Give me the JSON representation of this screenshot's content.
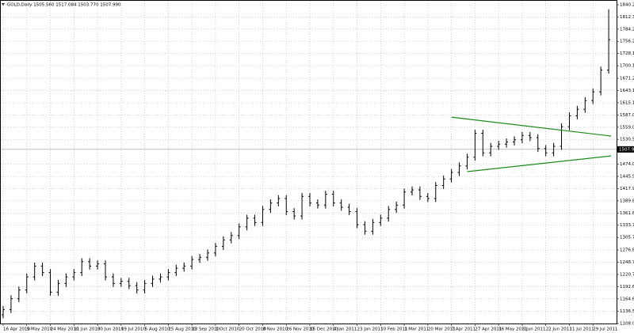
{
  "chart_data": {
    "type": "ohlc",
    "title": "GOLD,Daily  1505.560 1517.084 1503.770 1507.990",
    "categories": [
      "16 Apr 2010",
      null,
      null,
      "5 May 2010",
      null,
      null,
      "24 May 2010",
      null,
      null,
      "11 Jun 2010",
      null,
      null,
      "30 Jun 2010",
      null,
      null,
      "19 Jul 2010",
      null,
      null,
      "5 Aug 2010",
      null,
      null,
      "25 Aug 2010",
      null,
      null,
      "13 Sep 2010",
      null,
      null,
      "1 Oct 2010",
      null,
      null,
      "20 Oct 2010",
      null,
      null,
      "8 Nov 2010",
      null,
      null,
      "26 Nov 2010",
      null,
      null,
      "15 Dec 2010",
      null,
      null,
      "4 Jan 2011",
      null,
      null,
      "23 Jan 2011",
      null,
      null,
      "10 Feb 2011",
      null,
      null,
      "1 Mar 2011",
      null,
      null,
      "20 Mar 2011",
      null,
      null,
      "7 Apr 2011",
      null,
      null,
      "27 Apr 2011",
      null,
      null,
      "16 May 2011",
      null,
      null,
      "3 Jun 2011",
      null,
      null,
      "22 Jun 2011",
      null,
      null,
      "11 Jul 2011",
      null,
      null,
      "29 Jul 2011",
      null,
      null
    ],
    "open": [
      1128,
      1140,
      1165,
      1185,
      1215,
      1240,
      1225,
      1180,
      1200,
      1215,
      1225,
      1250,
      1240,
      1245,
      1215,
      1200,
      1205,
      1195,
      1185,
      1200,
      1210,
      1215,
      1225,
      1235,
      1240,
      1255,
      1260,
      1270,
      1285,
      1300,
      1310,
      1330,
      1350,
      1340,
      1370,
      1385,
      1395,
      1365,
      1355,
      1400,
      1385,
      1380,
      1405,
      1385,
      1375,
      1365,
      1335,
      1320,
      1340,
      1350,
      1370,
      1380,
      1410,
      1415,
      1400,
      1395,
      1425,
      1440,
      1455,
      1470,
      1490,
      1545,
      1500,
      1515,
      1520,
      1525,
      1530,
      1540,
      1535,
      1510,
      1500,
      1515,
      1560,
      1585,
      1600,
      1620,
      1640,
      1690
    ],
    "high": [
      1148,
      1173,
      1193,
      1223,
      1248,
      1248,
      1233,
      1208,
      1223,
      1233,
      1258,
      1258,
      1253,
      1253,
      1223,
      1213,
      1213,
      1203,
      1208,
      1218,
      1223,
      1233,
      1243,
      1248,
      1263,
      1268,
      1278,
      1293,
      1308,
      1318,
      1338,
      1358,
      1358,
      1378,
      1393,
      1403,
      1403,
      1373,
      1408,
      1408,
      1393,
      1413,
      1413,
      1393,
      1383,
      1373,
      1343,
      1348,
      1358,
      1378,
      1388,
      1418,
      1423,
      1423,
      1408,
      1433,
      1448,
      1463,
      1478,
      1498,
      1553,
      1553,
      1523,
      1528,
      1533,
      1538,
      1548,
      1548,
      1543,
      1518,
      1523,
      1568,
      1593,
      1608,
      1628,
      1648,
      1698,
      1830
    ],
    "low": [
      1120,
      1132,
      1157,
      1177,
      1207,
      1217,
      1172,
      1172,
      1192,
      1207,
      1217,
      1232,
      1232,
      1207,
      1192,
      1192,
      1187,
      1177,
      1177,
      1192,
      1202,
      1207,
      1217,
      1227,
      1232,
      1247,
      1252,
      1262,
      1277,
      1292,
      1302,
      1322,
      1332,
      1332,
      1362,
      1377,
      1357,
      1347,
      1347,
      1377,
      1372,
      1372,
      1377,
      1367,
      1357,
      1327,
      1312,
      1312,
      1332,
      1342,
      1362,
      1372,
      1402,
      1392,
      1387,
      1387,
      1417,
      1432,
      1447,
      1462,
      1482,
      1492,
      1492,
      1507,
      1512,
      1517,
      1522,
      1527,
      1502,
      1492,
      1492,
      1507,
      1552,
      1577,
      1592,
      1612,
      1632,
      1682
    ],
    "close": [
      1140,
      1165,
      1185,
      1215,
      1240,
      1225,
      1180,
      1200,
      1215,
      1225,
      1250,
      1240,
      1245,
      1215,
      1200,
      1205,
      1195,
      1185,
      1200,
      1210,
      1215,
      1225,
      1235,
      1240,
      1255,
      1260,
      1270,
      1285,
      1300,
      1310,
      1330,
      1350,
      1340,
      1370,
      1385,
      1395,
      1365,
      1355,
      1400,
      1385,
      1380,
      1405,
      1385,
      1375,
      1365,
      1335,
      1320,
      1340,
      1350,
      1370,
      1380,
      1410,
      1415,
      1400,
      1395,
      1425,
      1440,
      1455,
      1470,
      1490,
      1545,
      1500,
      1515,
      1520,
      1525,
      1530,
      1540,
      1535,
      1510,
      1500,
      1515,
      1560,
      1585,
      1600,
      1620,
      1640,
      1690,
      1760
    ],
    "color": "#000000",
    "ylim": [
      1108,
      1840.2
    ],
    "yticks": [
      {
        "value": 1840.2,
        "label": "1840.200"
      },
      {
        "value": 1812.3,
        "label": "1812.300"
      },
      {
        "value": 1784.25,
        "label": "1784.250"
      },
      {
        "value": 1756.2,
        "label": "1756.200"
      },
      {
        "value": 1728.15,
        "label": "1728.150"
      },
      {
        "value": 1700.1,
        "label": "1700.100"
      },
      {
        "value": 1671.2,
        "label": "1671.200"
      },
      {
        "value": 1643.15,
        "label": "1643.150"
      },
      {
        "value": 1615.1,
        "label": "1615.100"
      },
      {
        "value": 1587.05,
        "label": "1587.050"
      },
      {
        "value": 1559,
        "label": "1559.000"
      },
      {
        "value": 1530.95,
        "label": "1530.950"
      },
      {
        "value": 1474,
        "label": "1474.000"
      },
      {
        "value": 1445.9,
        "label": "1445.900"
      },
      {
        "value": 1417.9,
        "label": "1417.900"
      },
      {
        "value": 1389.85,
        "label": "1389.850"
      },
      {
        "value": 1361.8,
        "label": "1361.800"
      },
      {
        "value": 1333.75,
        "label": "1333.750"
      },
      {
        "value": 1305.7,
        "label": "1305.700"
      },
      {
        "value": 1276.8,
        "label": "1276.800"
      },
      {
        "value": 1248.75,
        "label": "1248.750"
      },
      {
        "value": 1220.7,
        "label": "1220.700"
      },
      {
        "value": 1192.65,
        "label": "1192.650"
      },
      {
        "value": 1164.6,
        "label": "1164.600"
      },
      {
        "value": 1136.55,
        "label": "1136.550"
      },
      {
        "value": 1108,
        "label": "1108.000"
      }
    ],
    "price_line": {
      "value": 1507.99,
      "label": "1507.990"
    },
    "trend_lines": [
      {
        "color": "#1a8a1a",
        "start": [
          57,
          1582
        ],
        "end": [
          77.3,
          1538.6
        ]
      },
      {
        "color": "#1a8a1a",
        "start": [
          59,
          1456.8
        ],
        "end": [
          77.3,
          1493
        ]
      }
    ],
    "grid": true
  }
}
